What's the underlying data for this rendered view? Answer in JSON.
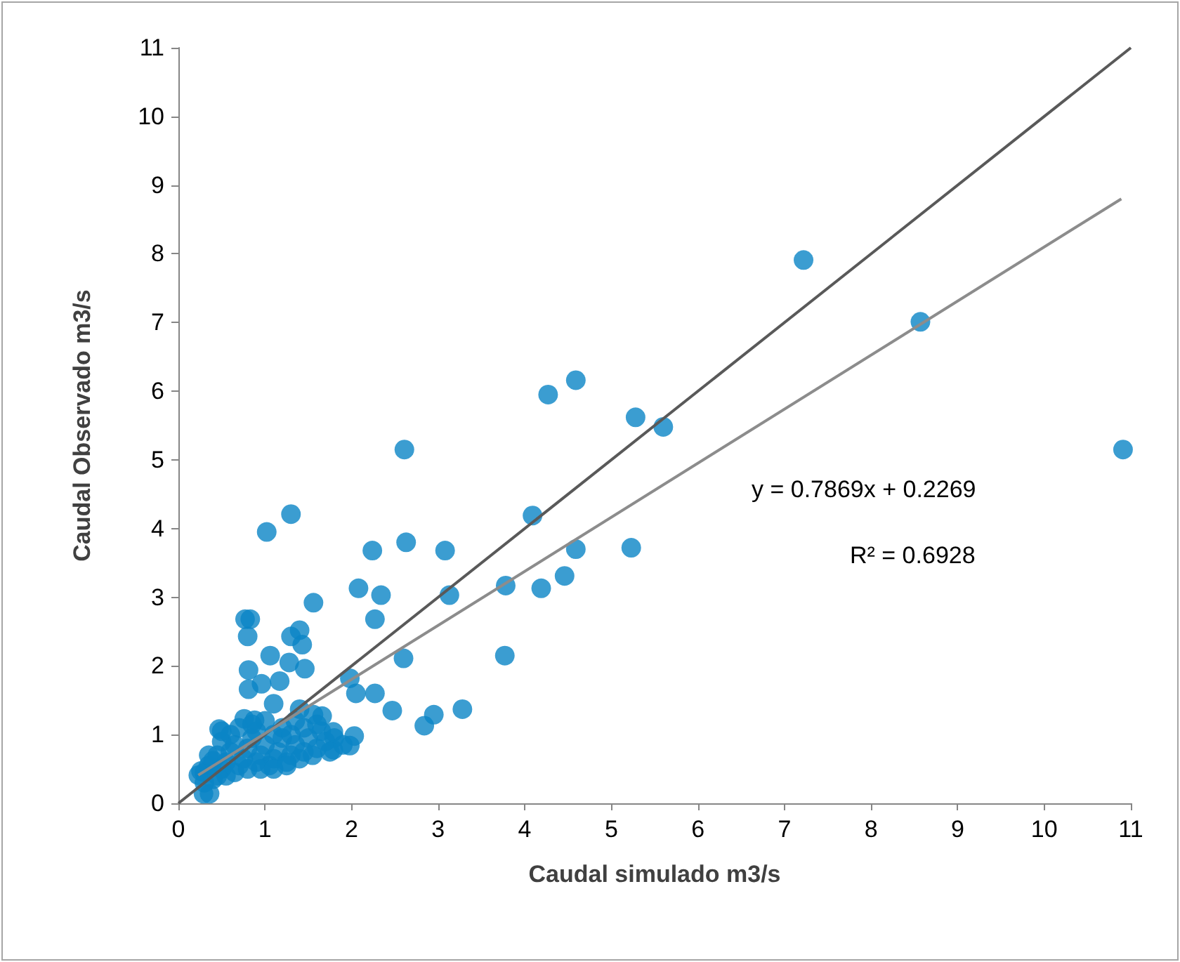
{
  "chart_data": {
    "type": "scatter",
    "xlabel": "Caudal simulado m3/s",
    "ylabel": "Caudal Observado m3/s",
    "xlim": [
      0,
      11
    ],
    "xticks": [
      0,
      1,
      2,
      3,
      4,
      5,
      6,
      7,
      8,
      9,
      10,
      11
    ],
    "ylim": [
      0,
      11
    ],
    "yticks": [
      0,
      1,
      2,
      3,
      4,
      5,
      6,
      7,
      8,
      9,
      10,
      11
    ],
    "grid": false,
    "marker": "circle",
    "annotations": [
      "y = 0.7869x + 0.2269",
      "R² = 0.6928"
    ],
    "series": [
      {
        "color": "#0a84c6",
        "x": [
          1.02,
          1.3,
          2.61,
          4.27,
          4.59,
          5.28,
          5.6,
          7.22,
          8.57,
          10.91,
          4.09,
          5.23,
          4.59,
          4.19,
          4.46,
          2.24,
          2.63,
          3.08,
          2.08,
          2.34,
          1.56,
          0.77,
          0.83,
          2.27,
          0.8,
          1.3,
          1.4,
          1.43,
          3.13,
          3.78,
          3.77,
          2.6,
          1.06,
          0.81,
          1.17,
          1.46,
          1.28,
          0.96,
          0.81,
          1.98,
          2.05,
          2.27,
          2.47,
          2.84,
          2.95,
          3.28,
          1.1,
          1.4,
          2.03,
          1.79,
          1.98,
          1.79,
          0.47,
          0.76,
          0.88,
          1.66,
          1.56,
          0.29,
          0.36,
          0.23,
          0.26,
          0.3,
          0.35,
          0.4,
          0.45,
          0.5,
          0.55,
          0.6,
          0.65,
          0.7,
          0.75,
          0.8,
          0.85,
          0.9,
          0.95,
          1.0,
          1.05,
          1.1,
          1.15,
          1.2,
          1.25,
          1.3,
          1.35,
          1.4,
          1.45,
          1.5,
          1.55,
          1.6,
          1.65,
          1.7,
          0.5,
          0.6,
          0.7,
          0.9,
          1.0,
          1.1,
          1.2,
          1.3,
          1.45,
          0.4,
          0.55,
          0.65,
          0.8,
          0.95,
          1.1,
          1.25,
          0.3,
          0.45,
          0.35,
          0.5,
          1.6,
          1.8,
          1.9,
          1.75,
          1.35,
          0.85
        ],
        "values": [
          3.95,
          4.21,
          5.15,
          5.95,
          6.16,
          5.62,
          5.48,
          7.91,
          7.01,
          5.15,
          4.19,
          3.72,
          3.7,
          3.13,
          3.31,
          3.68,
          3.8,
          3.68,
          3.13,
          3.03,
          2.92,
          2.68,
          2.68,
          2.68,
          2.43,
          2.43,
          2.52,
          2.31,
          3.03,
          3.17,
          2.15,
          2.11,
          2.15,
          1.94,
          1.78,
          1.96,
          2.05,
          1.74,
          1.66,
          1.82,
          1.6,
          1.6,
          1.35,
          1.13,
          1.29,
          1.37,
          1.45,
          1.37,
          0.98,
          1.04,
          0.84,
          0.78,
          1.08,
          1.23,
          1.21,
          1.27,
          1.29,
          0.14,
          0.14,
          0.41,
          0.47,
          0.45,
          0.55,
          0.62,
          0.7,
          0.5,
          0.6,
          0.75,
          0.85,
          0.55,
          0.65,
          0.8,
          0.95,
          0.6,
          0.7,
          0.85,
          0.55,
          0.65,
          0.75,
          0.95,
          0.6,
          0.7,
          0.85,
          0.65,
          0.75,
          0.95,
          0.7,
          0.8,
          1.05,
          0.9,
          0.9,
          1.0,
          1.1,
          1.05,
          1.2,
          1.0,
          1.1,
          1.0,
          1.1,
          0.35,
          0.4,
          0.45,
          0.5,
          0.5,
          0.5,
          0.55,
          0.3,
          0.4,
          0.7,
          1.05,
          1.15,
          0.95,
          0.85,
          0.75,
          1.2,
          1.15
        ]
      },
      {
        "type": "line",
        "color": "#595959",
        "marker": "none",
        "x": [
          0,
          11
        ],
        "values": [
          0,
          11
        ]
      },
      {
        "type": "line",
        "color": "#8c8c8c",
        "marker": "none",
        "x": [
          0.23,
          10.89
        ],
        "values": [
          0.41,
          8.8
        ]
      }
    ]
  }
}
